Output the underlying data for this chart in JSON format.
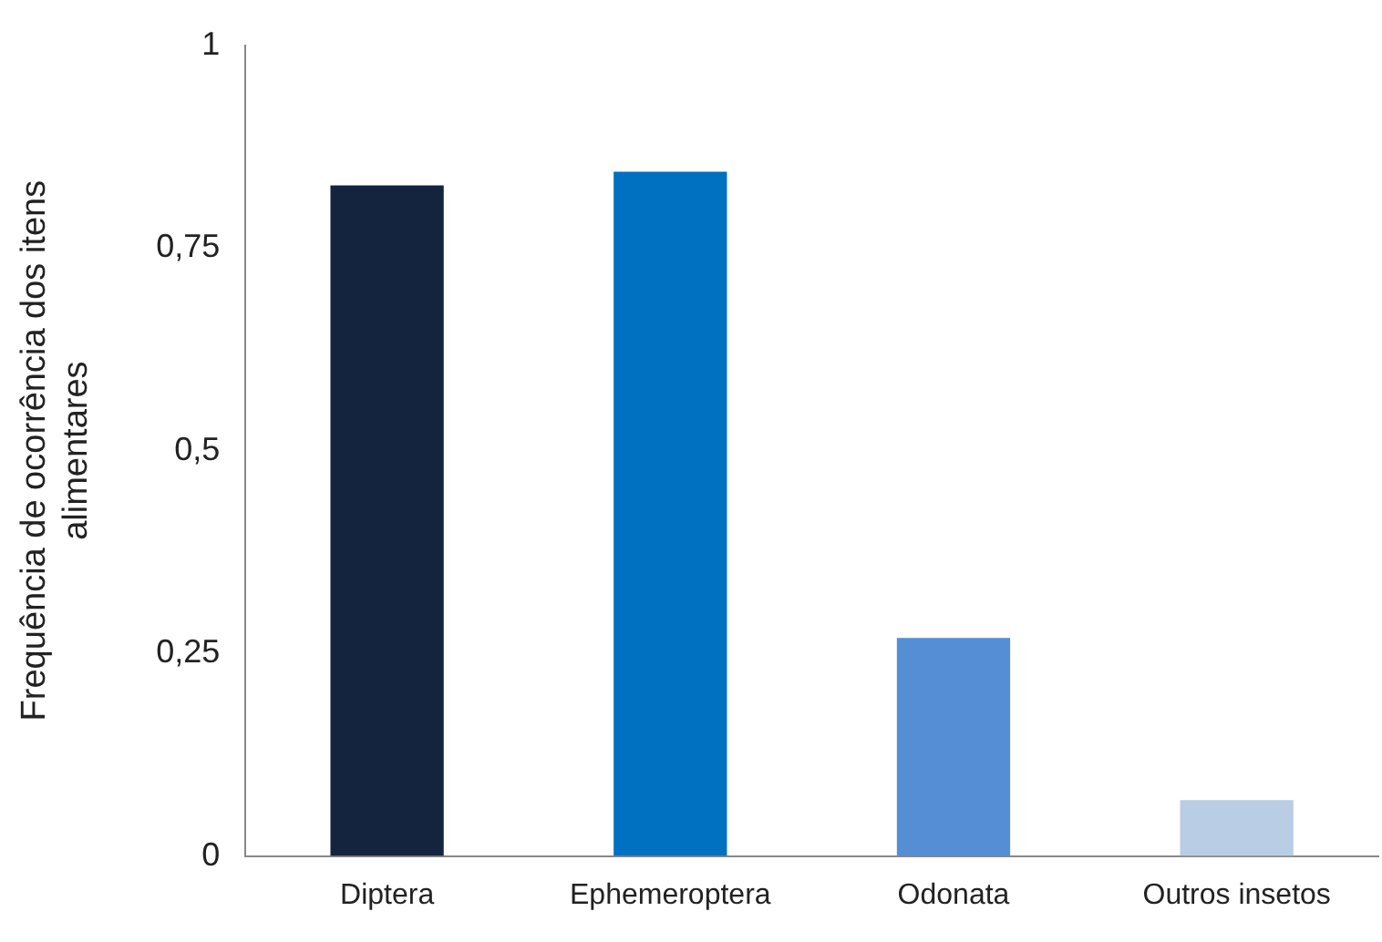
{
  "chart_data": {
    "type": "bar",
    "ylabel": "Frequência de ocorrência dos itens\nalimentares",
    "categories": [
      "Diptera",
      "Ephemeroptera",
      "Odonata",
      "Outros insetos"
    ],
    "values": [
      0.827,
      0.844,
      0.269,
      0.069
    ],
    "colors": [
      "#14243e",
      "#0070c0",
      "#558ed5",
      "#b9cde5"
    ],
    "ylim": [
      0,
      1
    ],
    "yticks": [
      0,
      {
        "value": 0.25,
        "label": "0,25"
      },
      {
        "value": 0.5,
        "label": "0,5"
      },
      {
        "value": 0.75,
        "label": "0,75"
      },
      1
    ],
    "grid": false,
    "legend": false
  }
}
